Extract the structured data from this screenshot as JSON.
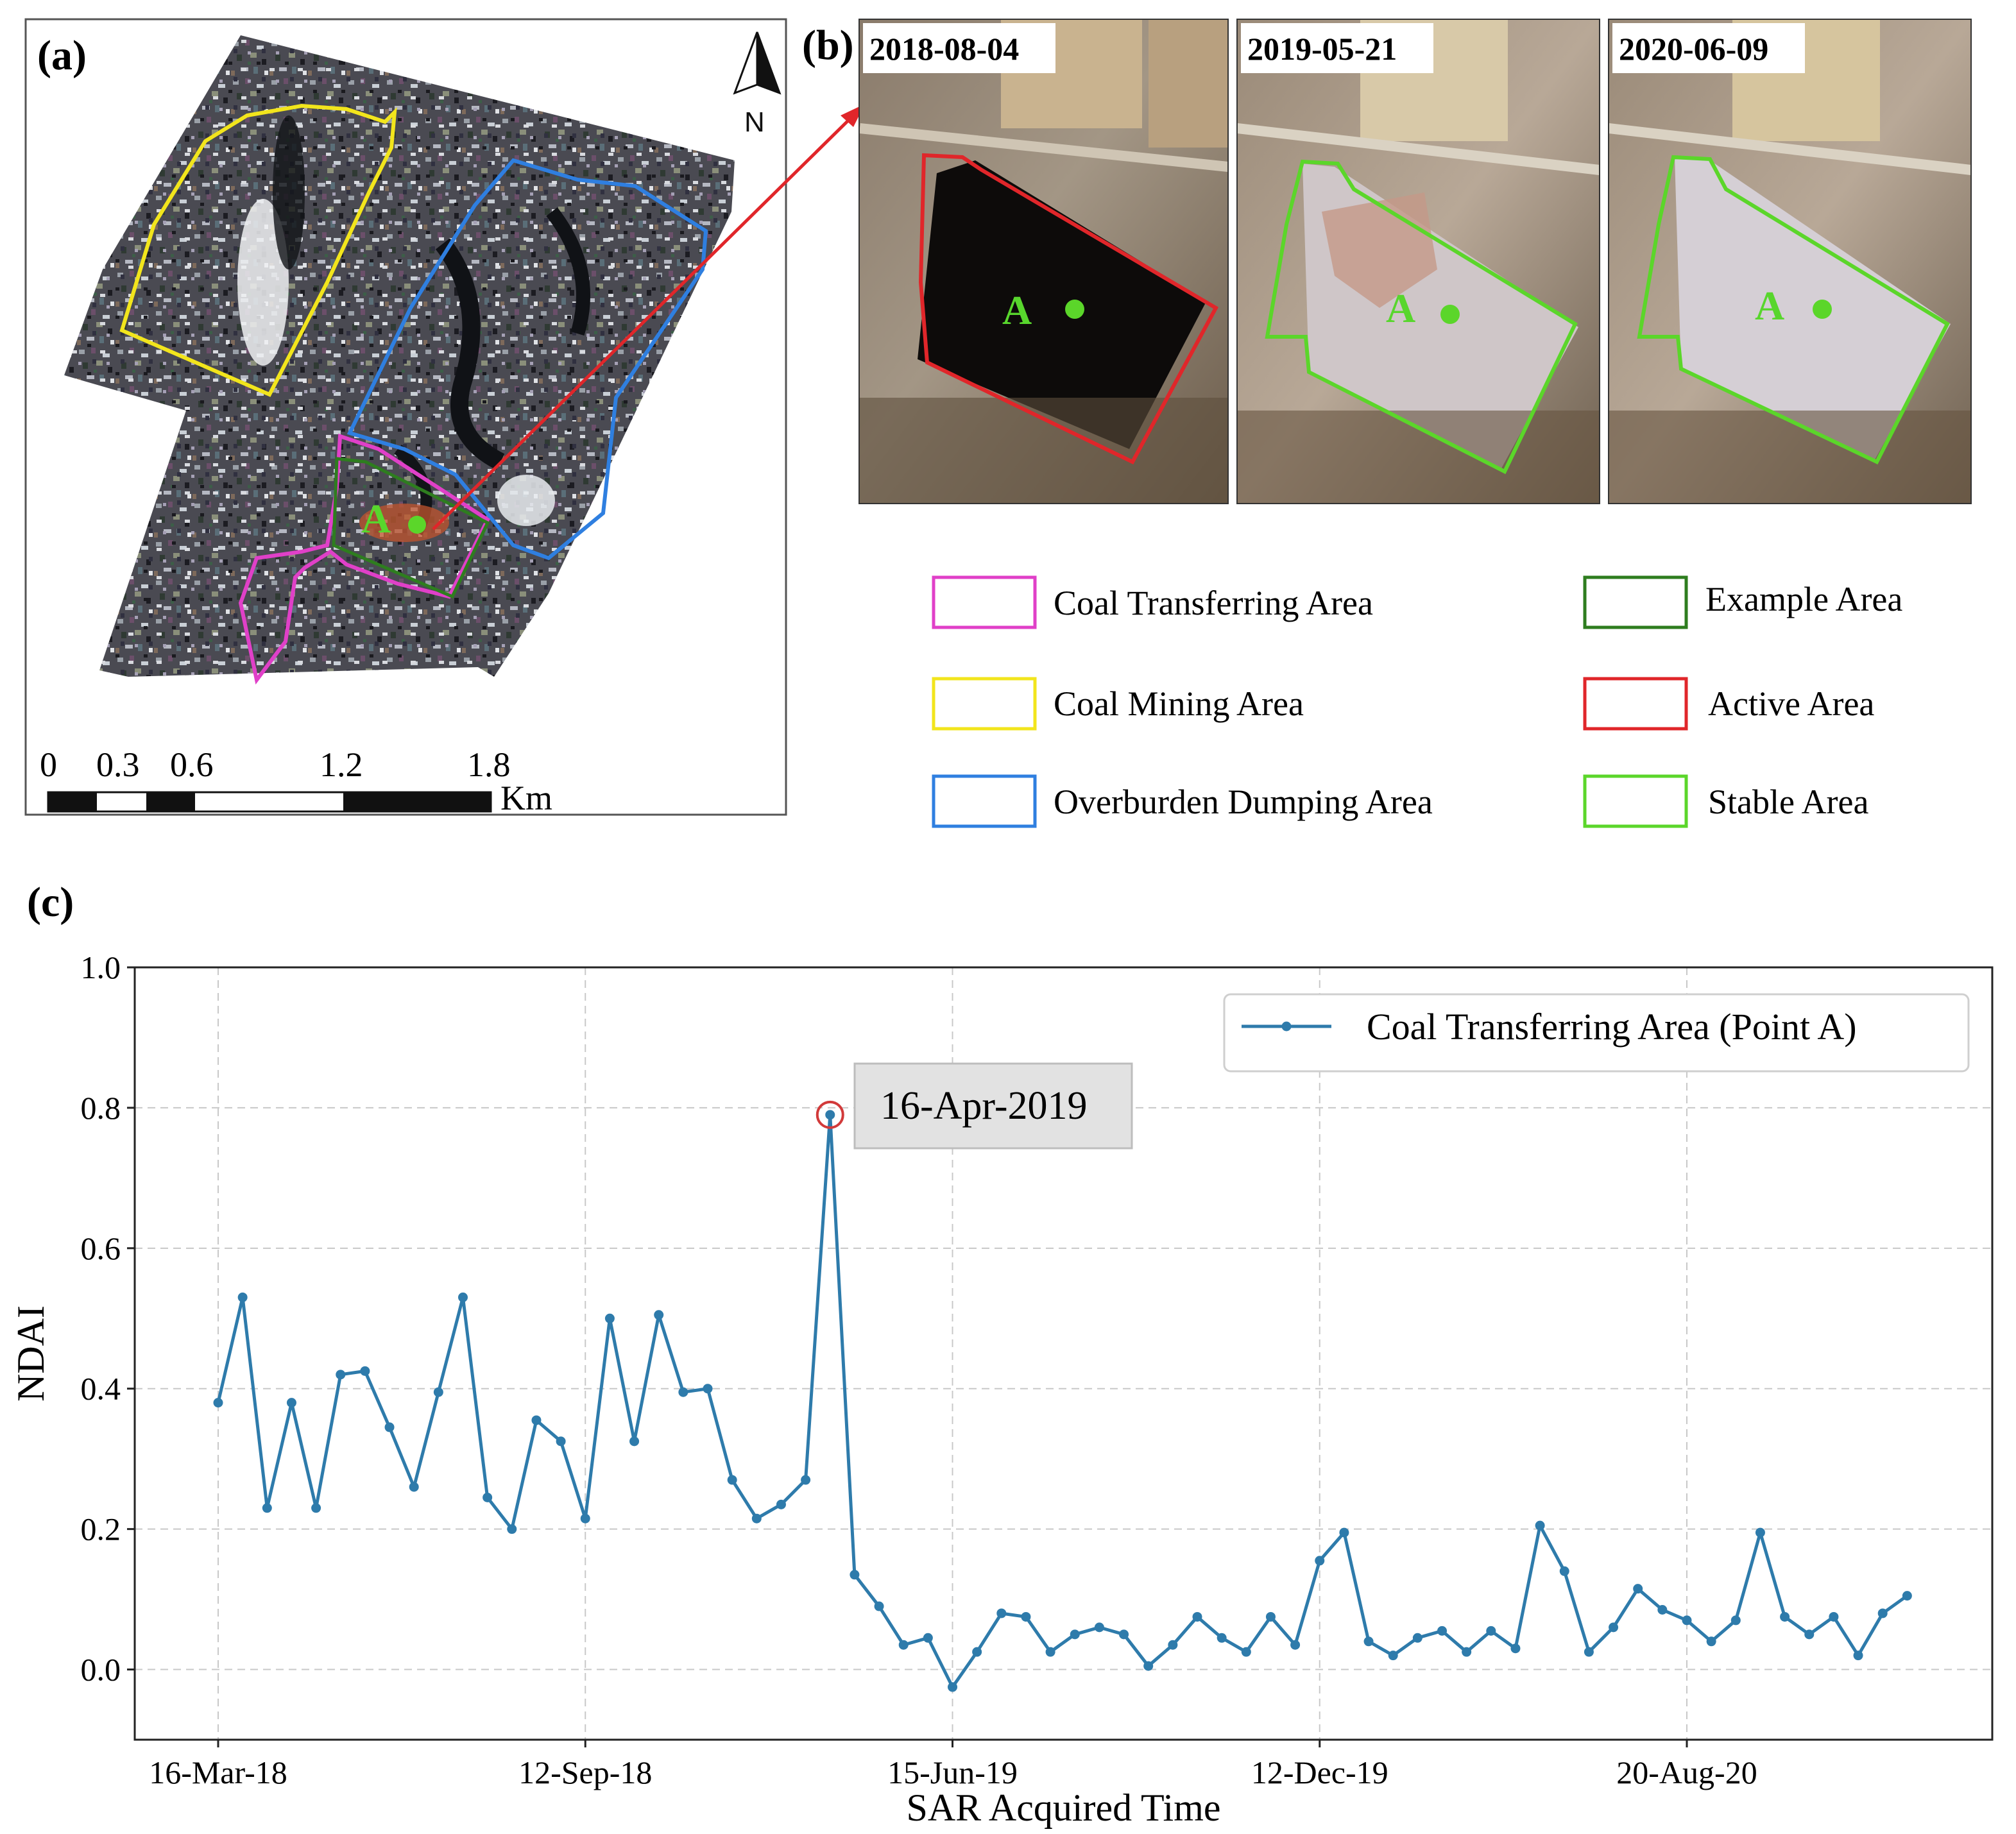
{
  "panels": {
    "a": {
      "letter": "(a)",
      "north_label": "N",
      "point_label": "A",
      "scale_ticks": [
        "0",
        "0.3",
        "0.6",
        "1.2",
        "1.8"
      ],
      "scale_unit": "Km"
    },
    "b": {
      "letter": "(b)",
      "point_label": "A",
      "dates": [
        "2018-08-04",
        "2019-05-21",
        "2020-06-09"
      ]
    },
    "c": {
      "letter": "(c)"
    }
  },
  "legend": [
    {
      "label": "Coal Transferring Area",
      "color": "#e040c8"
    },
    {
      "label": "Example Area",
      "color": "#2e7d1f"
    },
    {
      "label": "Coal Mining Area",
      "color": "#f2e51c"
    },
    {
      "label": "Active Area",
      "color": "#e0262a"
    },
    {
      "label": "Overburden Dumping Area",
      "color": "#2f7fe0"
    },
    {
      "label": "Stable Area",
      "color": "#5bd62a"
    }
  ],
  "chart_data": {
    "type": "line",
    "title": "",
    "xlabel": "SAR Acquired Time",
    "ylabel": "NDAI",
    "ylim": [
      -0.1,
      1.0
    ],
    "yticks": [
      "0.0",
      "0.2",
      "0.4",
      "0.6",
      "0.8",
      "1.0"
    ],
    "xtick_labels": [
      "16-Mar-18",
      "12-Sep-18",
      "15-Jun-19",
      "12-Dec-19",
      "20-Aug-20"
    ],
    "xtick_indices": [
      0,
      15,
      30,
      45,
      60
    ],
    "grid": true,
    "legend_position": "top-right",
    "series": [
      {
        "name": "Coal Transferring Area (Point A)",
        "color": "#2e7bab",
        "values": [
          0.38,
          0.53,
          0.23,
          0.38,
          0.23,
          0.42,
          0.425,
          0.345,
          0.26,
          0.395,
          0.53,
          0.245,
          0.2,
          0.355,
          0.325,
          0.215,
          0.5,
          0.325,
          0.505,
          0.395,
          0.4,
          0.27,
          0.215,
          0.235,
          0.27,
          0.79,
          0.135,
          0.09,
          0.035,
          0.045,
          -0.025,
          0.025,
          0.08,
          0.075,
          0.025,
          0.05,
          0.06,
          0.05,
          0.005,
          0.035,
          0.075,
          0.045,
          0.025,
          0.075,
          0.035,
          0.155,
          0.195,
          0.04,
          0.02,
          0.045,
          0.055,
          0.025,
          0.055,
          0.03,
          0.205,
          0.14,
          0.025,
          0.06,
          0.115,
          0.085,
          0.07,
          0.04,
          0.07,
          0.195,
          0.075,
          0.05,
          0.075,
          0.02,
          0.08,
          0.105
        ]
      }
    ],
    "annotation": {
      "text": "16-Apr-2019",
      "index": 25,
      "value": 0.79
    }
  }
}
